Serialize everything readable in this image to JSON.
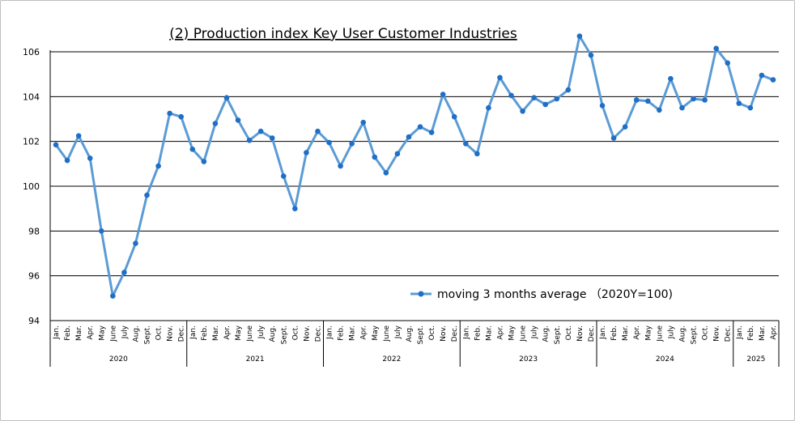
{
  "chart_data": {
    "type": "line",
    "title": "(2) Production index Key User Customer Industries",
    "xlabel": "",
    "ylabel": "",
    "ylim": [
      94,
      106
    ],
    "yticks": [
      94,
      96,
      98,
      100,
      102,
      104,
      106
    ],
    "grid": true,
    "legend_position": "bottom-right inside plot",
    "colors": {
      "series": "#5b9bd5",
      "grid": "#000000"
    },
    "month_labels": [
      "Jan.",
      "Feb.",
      "Mar.",
      "Apr.",
      "May",
      "June",
      "July",
      "Aug.",
      "Sept.",
      "Oct.",
      "Nov.",
      "Dec."
    ],
    "years": [
      {
        "label": "2020",
        "months": 12
      },
      {
        "label": "2021",
        "months": 12
      },
      {
        "label": "2022",
        "months": 12
      },
      {
        "label": "2023",
        "months": 12
      },
      {
        "label": "2024",
        "months": 12
      },
      {
        "label": "2025",
        "months": 4
      }
    ],
    "series": [
      {
        "name": "moving 3 months average （2020Y=100)",
        "values": [
          101.85,
          101.15,
          102.25,
          101.25,
          98.0,
          95.1,
          96.15,
          97.45,
          99.6,
          100.9,
          103.25,
          103.1,
          101.65,
          101.1,
          102.8,
          103.95,
          102.95,
          102.05,
          102.45,
          102.15,
          100.45,
          99.0,
          101.5,
          102.45,
          101.95,
          100.9,
          101.9,
          102.85,
          101.3,
          100.6,
          101.45,
          102.2,
          102.65,
          102.4,
          104.1,
          103.1,
          101.9,
          101.45,
          103.5,
          104.85,
          104.05,
          103.35,
          103.95,
          103.65,
          103.9,
          104.3,
          106.7,
          105.85,
          103.6,
          102.15,
          102.65,
          103.85,
          103.8,
          103.4,
          104.8,
          103.5,
          103.9,
          103.85,
          106.15,
          105.5,
          103.7,
          103.5,
          104.95,
          104.75
        ]
      }
    ]
  }
}
